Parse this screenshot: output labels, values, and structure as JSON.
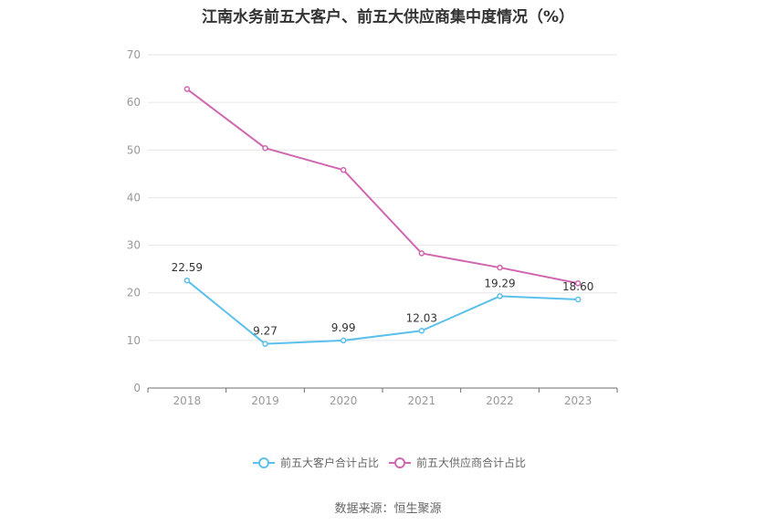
{
  "chart_data": {
    "type": "line",
    "title": "江南水务前五大客户、前五大供应商集中度情况（%）",
    "categories": [
      "2018",
      "2019",
      "2020",
      "2021",
      "2022",
      "2023"
    ],
    "y_ticks": [
      "0",
      "10",
      "20",
      "30",
      "40",
      "50",
      "60",
      "70"
    ],
    "ylim": [
      0,
      70
    ],
    "grid": true,
    "legend_position": "bottom",
    "series": [
      {
        "name": "前五大客户合计占比",
        "values": [
          22.59,
          9.27,
          9.99,
          12.03,
          19.29,
          18.6
        ],
        "labels": [
          "22.59",
          "9.27",
          "9.99",
          "12.03",
          "19.29",
          "18.60"
        ],
        "color": "#5bc0eb"
      },
      {
        "name": "前五大供应商合计占比",
        "values": [
          62.8,
          50.4,
          45.8,
          28.3,
          25.3,
          22.0
        ],
        "color": "#d066b0"
      }
    ]
  },
  "source": "数据来源：恒生聚源"
}
